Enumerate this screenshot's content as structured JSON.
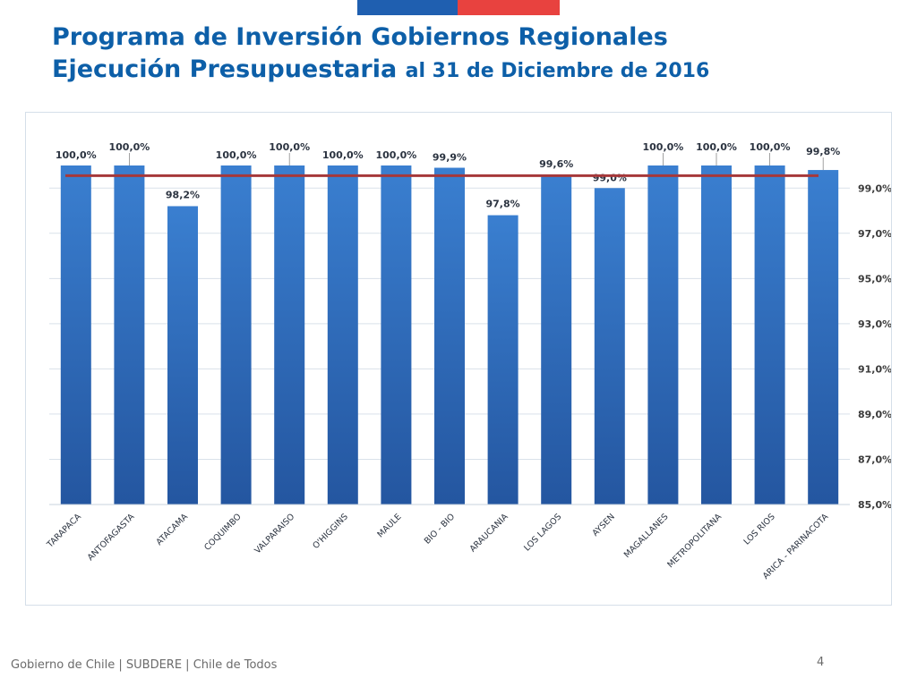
{
  "header": {
    "title_line1": "Programa de Inversión Gobiernos Regionales",
    "title_line2_main": "Ejecución Presupuestaria",
    "title_line2_rest": "al 31 de Diciembre de 2016"
  },
  "footer": {
    "text": "Gobierno de Chile | SUBDERE | Chile de Todos",
    "page_number": "4"
  },
  "colors": {
    "flag_blue": "#1f5fb0",
    "flag_red": "#e8423f",
    "bar_top": "#3a7fd0",
    "bar_bottom": "#2456a0",
    "reference_line": "#a6383a",
    "title": "#0d5fa8"
  },
  "chart_data": {
    "type": "bar",
    "title": "",
    "xlabel": "",
    "ylabel": "",
    "categories": [
      "TARAPACA",
      "ANTOFAGASTA",
      "ATACAMA",
      "COQUIMBO",
      "VALPARAISO",
      "O'HIGGINS",
      "MAULE",
      "BIO - BIO",
      "ARAUCANIA",
      "LOS LAGOS",
      "AYSEN",
      "MAGALLANES",
      "METROPOLITANA",
      "LOS RIOS",
      "ARICA - PARINACOTA"
    ],
    "values": [
      100.0,
      100.0,
      98.2,
      100.0,
      100.0,
      100.0,
      100.0,
      99.9,
      97.8,
      99.6,
      99.0,
      100.0,
      100.0,
      100.0,
      99.8
    ],
    "data_labels": [
      "100,0%",
      "100,0%",
      "98,2%",
      "100,0%",
      "100,0%",
      "100,0%",
      "100,0%",
      "99,9%",
      "97,8%",
      "99,6%",
      "99,0%",
      "100,0%",
      "100,0%",
      "100,0%",
      "99,8%"
    ],
    "reference_line_value": 99.55,
    "ylim": [
      85,
      100
    ],
    "yticks": [
      85,
      87,
      89,
      91,
      93,
      95,
      97,
      99
    ],
    "ytick_labels": [
      "85,0%",
      "87,0%",
      "89,0%",
      "91,0%",
      "93,0%",
      "95,0%",
      "97,0%",
      "99,0%"
    ],
    "y_axis_position": "right",
    "grid": true
  }
}
